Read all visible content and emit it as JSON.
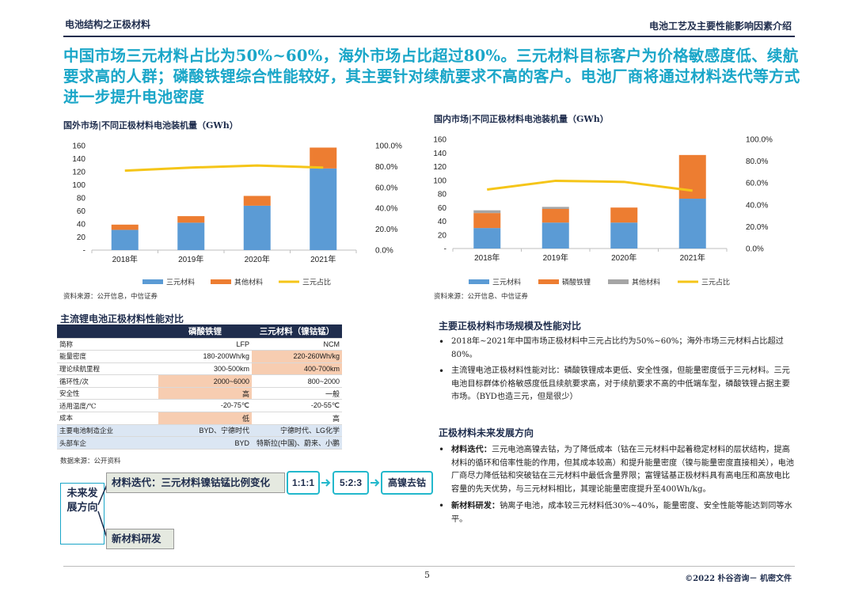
{
  "header": {
    "left_title": "电池结构之正极材料",
    "right_title": "电池工艺及主要性能影响因素介绍"
  },
  "headline": "中国市场三元材料占比为50%~60%，海外市场占比超过80%。三元材料目标客户为价格敏感度低、续航要求高的人群；磷酸铁锂综合性能较好，其主要针对续航要求不高的客户。电池厂商将通过材料迭代等方式进一步提升电池密度",
  "chart_data": [
    {
      "type": "bar",
      "title": "国外市场|不同正极材料电池装机量（GWh）",
      "categories": [
        "2018年",
        "2019年",
        "2020年",
        "2021年"
      ],
      "stacked": true,
      "series": [
        {
          "name": "三元材料",
          "values": [
            31,
            42,
            68,
            125
          ],
          "color": "#5b9bd5",
          "axis": "left"
        },
        {
          "name": "其他材料",
          "values": [
            8,
            10,
            15,
            32
          ],
          "color": "#ed7d31",
          "axis": "left"
        },
        {
          "name": "三元占比",
          "type": "line",
          "values": [
            0.76,
            0.79,
            0.81,
            0.79
          ],
          "color": "#f5c518",
          "axis": "right"
        }
      ],
      "yticks": [
        "160",
        "140",
        "120",
        "100",
        "80",
        "60",
        "40",
        "20",
        "-"
      ],
      "ylim": [
        0,
        160
      ],
      "y2ticks": [
        "100.0%",
        "80.0%",
        "60.0%",
        "40.0%",
        "20.0%",
        "0.0%"
      ],
      "y2lim": [
        0,
        1
      ],
      "legend": "bottom",
      "source": "资料来源：公开信息，中信证券"
    },
    {
      "type": "bar",
      "title": "国内市场|不同正极材料电池装机量（GWh）",
      "categories": [
        "2018年",
        "2019年",
        "2020年",
        "2021年"
      ],
      "stacked": true,
      "series": [
        {
          "name": "三元材料",
          "values": [
            30,
            38,
            38,
            73
          ],
          "color": "#5b9bd5",
          "axis": "left"
        },
        {
          "name": "磷酸铁锂",
          "values": [
            22,
            20,
            22,
            64
          ],
          "color": "#ed7d31",
          "axis": "left"
        },
        {
          "name": "其他材料",
          "values": [
            4,
            3,
            0,
            0
          ],
          "color": "#a5a5a5",
          "axis": "left"
        },
        {
          "name": "三元占比",
          "type": "line",
          "values": [
            0.54,
            0.62,
            0.61,
            0.53
          ],
          "color": "#f5c518",
          "axis": "right"
        }
      ],
      "yticks": [
        "160",
        "140",
        "120",
        "100",
        "80",
        "60",
        "40",
        "20",
        "-"
      ],
      "ylim": [
        0,
        160
      ],
      "y2ticks": [
        "100.0%",
        "80.0%",
        "60.0%",
        "40.0%",
        "20.0%",
        "0.0%"
      ],
      "y2lim": [
        0,
        1
      ],
      "legend": "bottom",
      "source": "资料来源：公开信息、中信证券"
    }
  ],
  "table": {
    "title": "主流锂电池正极材料性能对比",
    "columns": [
      "",
      "磷酸铁锂",
      "三元材料（镍钴锰）"
    ],
    "rows": [
      {
        "label": "简称",
        "c1": "LFP",
        "c2": "NCM",
        "hl1": false,
        "hl2": false
      },
      {
        "label": "能量密度",
        "c1": "180-200Wh/kg",
        "c2": "220-260Wh/kg",
        "hl1": false,
        "hl2": true
      },
      {
        "label": "理论续航里程",
        "c1": "300-500km",
        "c2": "400-700km",
        "hl1": false,
        "hl2": true
      },
      {
        "label": "循环性/次",
        "c1": "2000~6000",
        "c2": "800~2000",
        "hl1": true,
        "hl2": false
      },
      {
        "label": "安全性",
        "c1": "高",
        "c2": "一般",
        "hl1": true,
        "hl2": false
      },
      {
        "label": "适用温度/℃",
        "c1": "-20-75℃",
        "c2": "-20-55℃",
        "hl1": false,
        "hl2": false
      },
      {
        "label": "成本",
        "c1": "低",
        "c2": "高",
        "hl1": true,
        "hl2": false
      },
      {
        "label": "主要电池制造企业",
        "c1": "BYD、宁德时代",
        "c2": "宁德时代、LG化学",
        "blue": true
      },
      {
        "label": "头部车企",
        "c1": "BYD",
        "c2": "特斯拉(中国)、蔚来、小鹏",
        "blue": true
      }
    ],
    "source": "数据来源：公开资料"
  },
  "future": {
    "label": "未来发展方向",
    "path1": "材料迭代：三元材料镍钴锰比例变化",
    "steps": [
      "1:1:1",
      "5:2:3",
      "高镍去钴"
    ],
    "path2": "新材料研发"
  },
  "right_text": {
    "section1_title": "主要正极材料市场规模及性能对比",
    "bullets1": [
      "2018年~2021年中国市场正极材料中三元占比约为50%~60%；海外市场三元材料占比超过80%。",
      "主流锂电池正极材料性能对比：磷酸铁锂成本更低、安全性强，但能量密度低于三元材料。三元电池目标群体价格敏感度低且续航要求高，对于续航要求不高的中低端车型，磷酸铁锂占据主要市场。（BYD也造三元，但是很少）"
    ],
    "section2_title": "正极材料未来发展方向",
    "bullets2": [
      {
        "bold": "材料迭代：",
        "text": "三元电池高镍去钴，为了降低成本（钴在三元材料中起着稳定材料的层状结构，提高材料的循环和倍率性能的作用，但其成本较高）和提升能量密度（镍与能量密度直接相关），电池厂商尽力降低钴和突破钴在三元材料中最低含量界限；富锂锰基正极材料具有高电压和高放电比容量的先天优势，与三元材料相比，其理论能量密度提升至400Wh/kg。"
      },
      {
        "bold": "新材料研发：",
        "text": "钠离子电池，成本较三元材料低30%~40%，能量密度、安全性能等能达到同等水平。"
      }
    ]
  },
  "footer": {
    "page": "5",
    "copyright": "©2022 朴谷咨询－ 机密文件"
  }
}
